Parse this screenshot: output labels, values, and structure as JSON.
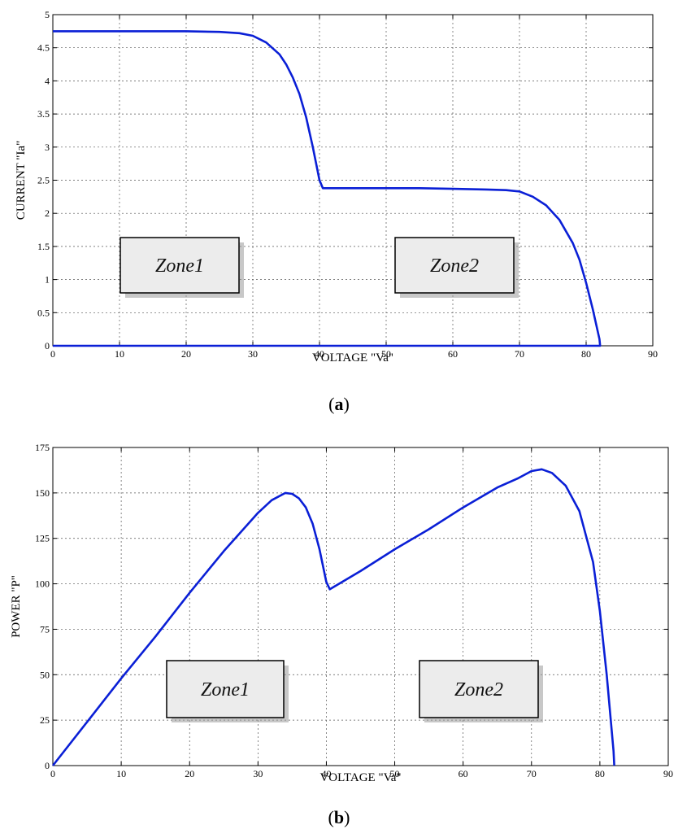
{
  "chart_data": [
    {
      "type": "line",
      "xlabel": "VOLTAGE \"Va\"",
      "ylabel": "CURRENT \"Ia\"",
      "xlim": [
        0,
        90
      ],
      "ylim": [
        0,
        5
      ],
      "xticks": [
        0,
        10,
        20,
        30,
        40,
        50,
        60,
        70,
        80,
        90
      ],
      "yticks": [
        0,
        0.5,
        1,
        1.5,
        2,
        2.5,
        3,
        3.5,
        4,
        4.5,
        5
      ],
      "grid": true,
      "caption_open": "(",
      "caption_letter": "a",
      "caption_close": ")",
      "zones": [
        "Zone1",
        "Zone2"
      ],
      "series": [
        {
          "color": "#0a1fd6",
          "x": [
            0,
            10,
            20,
            25,
            28,
            30,
            32,
            34,
            35,
            36,
            37,
            38,
            39,
            40,
            40.5,
            45,
            50,
            55,
            60,
            65,
            68,
            70,
            72,
            74,
            76,
            78,
            79,
            80,
            81,
            82,
            82.1,
            80,
            60,
            40,
            20,
            0
          ],
          "y": [
            4.75,
            4.75,
            4.75,
            4.74,
            4.72,
            4.68,
            4.58,
            4.4,
            4.25,
            4.05,
            3.8,
            3.45,
            3.0,
            2.5,
            2.38,
            2.38,
            2.38,
            2.38,
            2.37,
            2.36,
            2.35,
            2.33,
            2.25,
            2.12,
            1.9,
            1.55,
            1.3,
            0.95,
            0.55,
            0.1,
            0.0,
            0.0,
            0.0,
            0.0,
            0.0,
            0.0
          ]
        }
      ]
    },
    {
      "type": "line",
      "xlabel": "VOLTAGE \"Va\"",
      "ylabel": "POWER \"P\"",
      "xlim": [
        0,
        90
      ],
      "ylim": [
        0,
        175
      ],
      "xticks": [
        0,
        10,
        20,
        30,
        40,
        50,
        60,
        70,
        80,
        90
      ],
      "yticks": [
        0,
        25,
        50,
        75,
        100,
        125,
        150,
        175
      ],
      "grid": true,
      "caption_open": "(",
      "caption_letter": "b",
      "caption_close": ")",
      "zones": [
        "Zone1",
        "Zone2"
      ],
      "series": [
        {
          "color": "#0a1fd6",
          "x": [
            0,
            5,
            10,
            15,
            20,
            25,
            30,
            32,
            34,
            35,
            36,
            37,
            38,
            39,
            40,
            40.5,
            45,
            50,
            55,
            60,
            65,
            68,
            70,
            71.5,
            73,
            75,
            77,
            79,
            80,
            81,
            82,
            82.1
          ],
          "y": [
            0,
            24,
            48,
            71,
            95,
            118,
            139,
            146,
            150,
            149.5,
            147,
            142,
            133,
            119,
            101,
            97,
            107,
            119,
            130,
            142,
            153,
            158,
            162,
            163,
            161,
            154,
            140,
            112,
            85,
            50,
            8,
            0
          ]
        }
      ]
    }
  ]
}
